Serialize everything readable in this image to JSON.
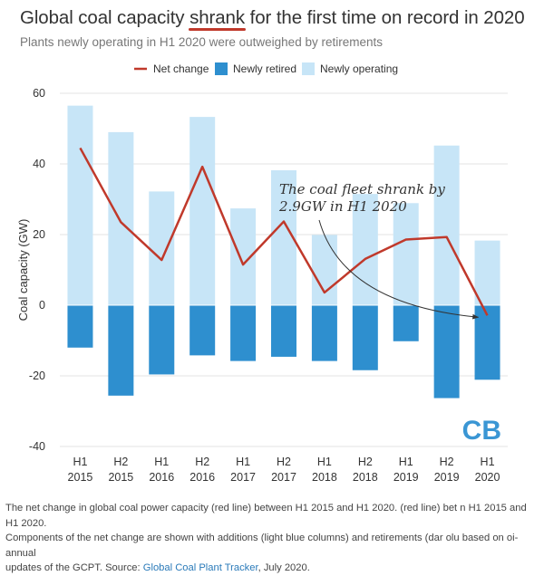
{
  "header": {
    "title_before": "Global coal capacity ",
    "title_highlight": "shrank",
    "title_after": " for the first time on record in 2020",
    "subtitle": "Plants newly operating in H1 2020 were outweighed by retirements"
  },
  "colors": {
    "operating": "#c7e5f7",
    "retired": "#2e8fcf",
    "net": "#c0392b",
    "grid": "#e3e3e3",
    "logo": "#3a96d4"
  },
  "chart_data": {
    "type": "bar",
    "categories": [
      [
        "H1",
        "2015"
      ],
      [
        "H2",
        "2015"
      ],
      [
        "H1",
        "2016"
      ],
      [
        "H2",
        "2016"
      ],
      [
        "H1",
        "2017"
      ],
      [
        "H2",
        "2017"
      ],
      [
        "H1",
        "2018"
      ],
      [
        "H2",
        "2018"
      ],
      [
        "H1",
        "2019"
      ],
      [
        "H2",
        "2019"
      ],
      [
        "H1",
        "2020"
      ]
    ],
    "series": [
      {
        "name": "Net change",
        "kind": "line",
        "values": [
          44.5,
          23.5,
          12.8,
          39.2,
          11.5,
          23.7,
          3.6,
          13.1,
          18.6,
          19.3,
          -2.9
        ]
      },
      {
        "name": "Newly retired",
        "kind": "bar",
        "values": [
          -12,
          -25.6,
          -19.6,
          -14.2,
          -15.8,
          -14.6,
          -15.8,
          -18.4,
          -10.2,
          -26.3,
          -21.1
        ]
      },
      {
        "name": "Newly operating",
        "kind": "bar",
        "values": [
          56.5,
          49,
          32.2,
          53.3,
          27.4,
          38.2,
          19.9,
          31.5,
          28.9,
          45.2,
          18.3
        ]
      }
    ],
    "ylabel": "Coal capacity (GW)",
    "xlabel": "",
    "ylim": [
      -40,
      60
    ],
    "yticks": [
      60,
      40,
      20,
      0,
      -20,
      -40
    ],
    "grid": true,
    "legend_position": "top",
    "annotation": {
      "lines": [
        "The coal fleet shrank by",
        "2.9GW in H1 2020"
      ],
      "target_index": 10
    }
  },
  "logo_text": "CB",
  "caption": {
    "line1": "The net change in global coal power capacity (red line) between H1 2015 and H1 2020. (red line) bet",
    "line1_tail": "n H1 2015 and H1 2020.",
    "line2a": "Components of the net change are shown with additions (light blue columns) and retirements (dar",
    "line2b": "olu",
    "line2c": "based on oi-annual",
    "line3a": "updates of the GCPT. Source: ",
    "line3_link": "Global Coal Plant Tracker",
    "line3b": ", July 2020."
  }
}
